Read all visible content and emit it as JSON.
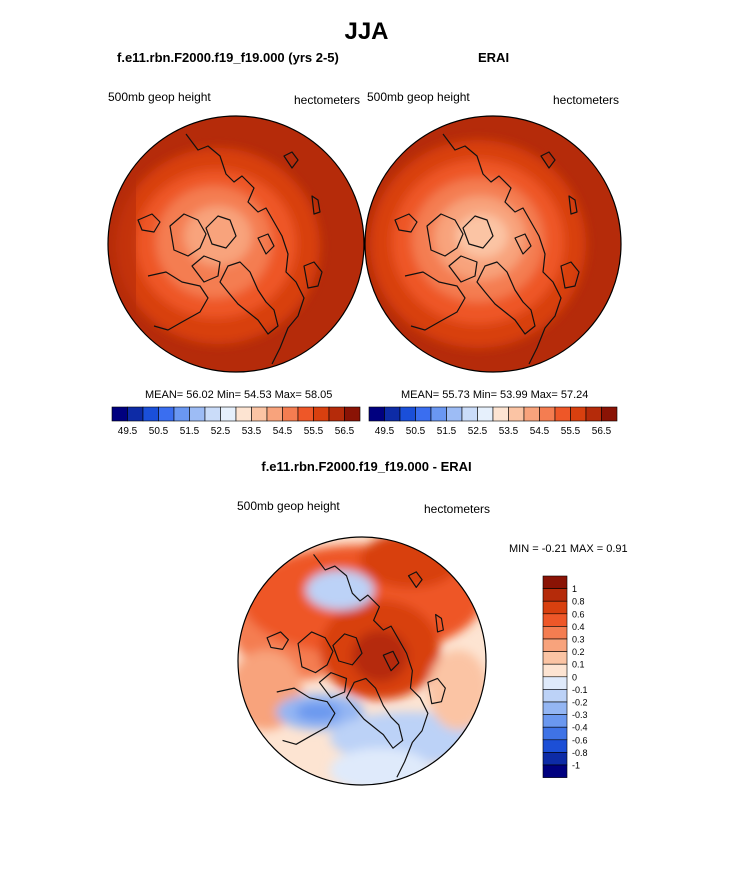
{
  "title": "JJA",
  "panels": [
    {
      "title": "f.e11.rbn.F2000.f19_f19.000 (yrs 2-5)",
      "left_label": "500mb geop height",
      "right_label": "hectometers",
      "stats": "MEAN=  56.02  Min=  54.53  Max=  58.05"
    },
    {
      "title": "ERAI",
      "left_label": "500mb geop height",
      "right_label": "hectometers",
      "stats": "MEAN=  55.73  Min=  53.99  Max=  57.24"
    }
  ],
  "abs_colorbar": {
    "labels": [
      "49.5",
      "50.5",
      "51.5",
      "52.5",
      "53.5",
      "54.5",
      "55.5",
      "56.5"
    ],
    "colors": [
      "#00007f",
      "#0d2ba6",
      "#1a4fd9",
      "#3a6ef0",
      "#6a97f2",
      "#9dbcf5",
      "#cadcf9",
      "#e6f0fc",
      "#fde4d2",
      "#fbc4a4",
      "#f8a37c",
      "#f47d51",
      "#ee5728",
      "#d8400f",
      "#b52b0a",
      "#8a1305"
    ]
  },
  "difference": {
    "title": "f.e11.rbn.F2000.f19_f19.000 - ERAI",
    "left_label": "500mb geop height",
    "right_label": "hectometers",
    "stats": "MIN =  -0.21 MAX =   0.91",
    "colorbar_labels": [
      "1",
      "0.8",
      "0.6",
      "0.4",
      "0.3",
      "0.2",
      "0.1",
      "0",
      "-0.1",
      "-0.2",
      "-0.3",
      "-0.4",
      "-0.6",
      "-0.8",
      "-1"
    ],
    "colorbar_colors": [
      "#8a1305",
      "#b52b0a",
      "#d8400f",
      "#ee5728",
      "#f47d51",
      "#f8a37c",
      "#fbc4a4",
      "#fde4d2",
      "#dfeafb",
      "#bcd2f7",
      "#94b6f3",
      "#6b98ef",
      "#3f73e6",
      "#1c4fd6",
      "#0d2ba6",
      "#00007f"
    ]
  }
}
